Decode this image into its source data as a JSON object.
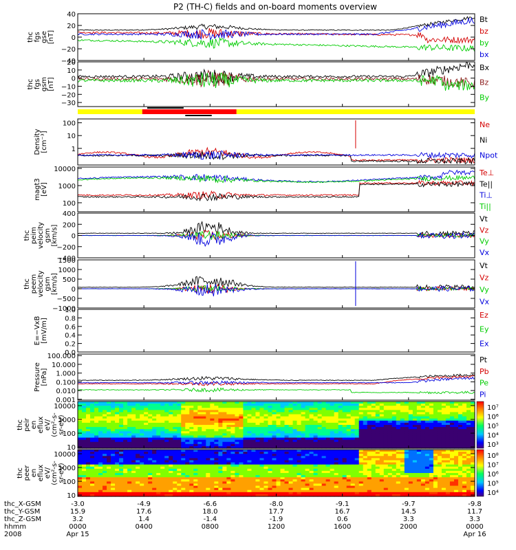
{
  "title": "P2 (TH-C) fields and on-board moments overview",
  "chart_data": [
    {
      "type": "line",
      "panel": "fgs-gse",
      "ylabel": [
        "thc",
        "fgs",
        "gse",
        "[nT]"
      ],
      "ylim": [
        -40,
        40
      ],
      "yticks": [
        "40",
        "20",
        "0",
        "−20",
        "−40"
      ],
      "tickvals": [
        40,
        20,
        0,
        -20,
        -40
      ],
      "series": [
        {
          "name": "Bt",
          "color": "#000000"
        },
        {
          "name": "bz",
          "color": "#d40000"
        },
        {
          "name": "by",
          "color": "#00cc00"
        },
        {
          "name": "bx",
          "color": "#0000dd"
        }
      ]
    },
    {
      "type": "line",
      "panel": "fgs-gsm",
      "ylabel": [
        "thc",
        "fgs",
        "gsm",
        "[nT]"
      ],
      "ylim": [
        -35,
        20
      ],
      "yticks": [
        "20",
        "10",
        "0",
        "−10",
        "−20",
        "−30"
      ],
      "tickvals": [
        20,
        10,
        0,
        -10,
        -20,
        -30
      ],
      "series": [
        {
          "name": "Bx",
          "color": "#000000"
        },
        {
          "name": "Bz",
          "color": "#8b1a1a"
        },
        {
          "name": "By",
          "color": "#00cc00"
        }
      ]
    },
    {
      "type": "line",
      "panel": "density",
      "log": true,
      "ylabel": [
        "Density",
        "[cm⁻³]"
      ],
      "ylim": [
        0.05,
        200
      ],
      "yticks": [
        "100",
        "10",
        "1"
      ],
      "tickvals": [
        100,
        10,
        1
      ],
      "series": [
        {
          "name": "Ne",
          "color": "#d40000"
        },
        {
          "name": "Ni",
          "color": "#000000"
        },
        {
          "name": "Npot",
          "color": "#0000dd"
        }
      ]
    },
    {
      "type": "line",
      "panel": "temperature",
      "log": true,
      "ylabel": [
        "magt3",
        "[eV]"
      ],
      "ylim": [
        30,
        12000
      ],
      "yticks": [
        "10000",
        "1000",
        "100"
      ],
      "tickvals": [
        10000,
        1000,
        100
      ],
      "series": [
        {
          "name": "Te⊥",
          "color": "#d40000"
        },
        {
          "name": "Te||",
          "color": "#000000"
        },
        {
          "name": "Ti⊥",
          "color": "#0000dd"
        },
        {
          "name": "Ti||",
          "color": "#00cc00"
        }
      ]
    },
    {
      "type": "line",
      "panel": "peim-velocity",
      "ylabel": [
        "thc",
        "peim",
        "velocity",
        "gsm",
        "[km/s]"
      ],
      "ylim": [
        -400,
        400
      ],
      "yticks": [
        "400",
        "200",
        "0",
        "−200",
        "−400"
      ],
      "tickvals": [
        400,
        200,
        0,
        -200,
        -400
      ],
      "series": [
        {
          "name": "Vt",
          "color": "#000000"
        },
        {
          "name": "Vz",
          "color": "#d40000"
        },
        {
          "name": "Vy",
          "color": "#00cc00"
        },
        {
          "name": "Vx",
          "color": "#0000dd"
        }
      ]
    },
    {
      "type": "line",
      "panel": "peem-velocity",
      "ylabel": [
        "thc",
        "peem",
        "velocity",
        "gsm",
        "[km/s]"
      ],
      "ylim": [
        -1000,
        1500
      ],
      "yticks": [
        "1500",
        "1000",
        "500",
        "0",
        "−500",
        "−1000"
      ],
      "tickvals": [
        1500,
        1000,
        500,
        0,
        -500,
        -1000
      ],
      "series": [
        {
          "name": "Vt",
          "color": "#000000"
        },
        {
          "name": "Vz",
          "color": "#d40000"
        },
        {
          "name": "Vy",
          "color": "#00cc00"
        },
        {
          "name": "Vx",
          "color": "#0000dd"
        }
      ]
    },
    {
      "type": "line",
      "panel": "efield",
      "ylabel": [
        "E=−VxB",
        "[mV/m]"
      ],
      "ylim": [
        0.0,
        1.0
      ],
      "yticks": [
        "1.0",
        "0.8",
        "0.6",
        "0.4",
        "0.2",
        "0.0"
      ],
      "tickvals": [
        1.0,
        0.8,
        0.6,
        0.4,
        0.2,
        0.0
      ],
      "series": [
        {
          "name": "Ez",
          "color": "#d40000"
        },
        {
          "name": "Ey",
          "color": "#00cc00"
        },
        {
          "name": "Ex",
          "color": "#0000dd"
        }
      ]
    },
    {
      "type": "line",
      "panel": "pressure",
      "log": true,
      "ylabel": [
        "Pressure",
        "[nPa]"
      ],
      "ylim": [
        0.0008,
        150
      ],
      "yticks": [
        "100.000",
        "10.000",
        "1.000",
        "0.100",
        "0.010",
        "0.001"
      ],
      "tickvals": [
        100,
        10,
        1,
        0.1,
        0.01,
        0.001
      ],
      "series": [
        {
          "name": "Pt",
          "color": "#000000"
        },
        {
          "name": "Pb",
          "color": "#d40000"
        },
        {
          "name": "Pe",
          "color": "#00cc00"
        },
        {
          "name": "Pi",
          "color": "#0000dd"
        }
      ]
    },
    {
      "type": "heatmap",
      "panel": "peir-spectrogram",
      "log": true,
      "ylabel": [
        "thc",
        "peir",
        "en",
        "eflux",
        "eV/",
        "(cm²-s-",
        "sr-eV)"
      ],
      "ylim": [
        8,
        20000
      ],
      "yticks": [
        "10000",
        "1000",
        "100",
        "10"
      ],
      "tickvals": [
        10000,
        1000,
        100,
        10
      ],
      "colorbar": [
        "10⁷",
        "10⁶",
        "10⁵",
        "10⁴",
        "10³"
      ]
    },
    {
      "type": "heatmap",
      "panel": "peer-spectrogram",
      "log": true,
      "ylabel": [
        "thc",
        "peer",
        "en",
        "eflux",
        "eV/",
        "(cm²-s-",
        "sr-eV)"
      ],
      "ylim": [
        8,
        20000
      ],
      "yticks": [
        "10000",
        "1000",
        "100",
        "10"
      ],
      "tickvals": [
        10000,
        1000,
        100,
        10
      ],
      "colorbar": [
        "10⁸",
        "10⁷",
        "10⁶",
        "10⁵",
        "10⁴"
      ]
    }
  ],
  "xaxis": {
    "rows": [
      {
        "label": "thc_X-GSM",
        "values": [
          "-3.0",
          "-4.9",
          "-6.6",
          "-8.0",
          "-9.1",
          "-9.7",
          "-9.8"
        ]
      },
      {
        "label": "thc_Y-GSM",
        "values": [
          "15.9",
          "17.6",
          "18.0",
          "17.7",
          "16.7",
          "14.5",
          "11.7"
        ]
      },
      {
        "label": "thc_Z-GSM",
        "values": [
          "3.2",
          "1.4",
          "-1.4",
          "-1.9",
          "0.6",
          "3.3",
          "3.3"
        ]
      },
      {
        "label": "hhmm",
        "values": [
          "0000",
          "0400",
          "0800",
          "1200",
          "1600",
          "2000",
          "0000"
        ]
      },
      {
        "label": "2008",
        "values": [
          "Apr 15",
          "",
          "",
          "",
          "",
          "",
          "Apr 16"
        ]
      }
    ]
  },
  "status_bar": {
    "segments": [
      {
        "from_hour": 0,
        "to_hour": 3.9,
        "color": "#ffff00"
      },
      {
        "from_hour": 3.9,
        "to_hour": 9.6,
        "color": "#ff0000"
      },
      {
        "from_hour": 9.6,
        "to_hour": 24,
        "color": "#ffff00"
      }
    ]
  }
}
